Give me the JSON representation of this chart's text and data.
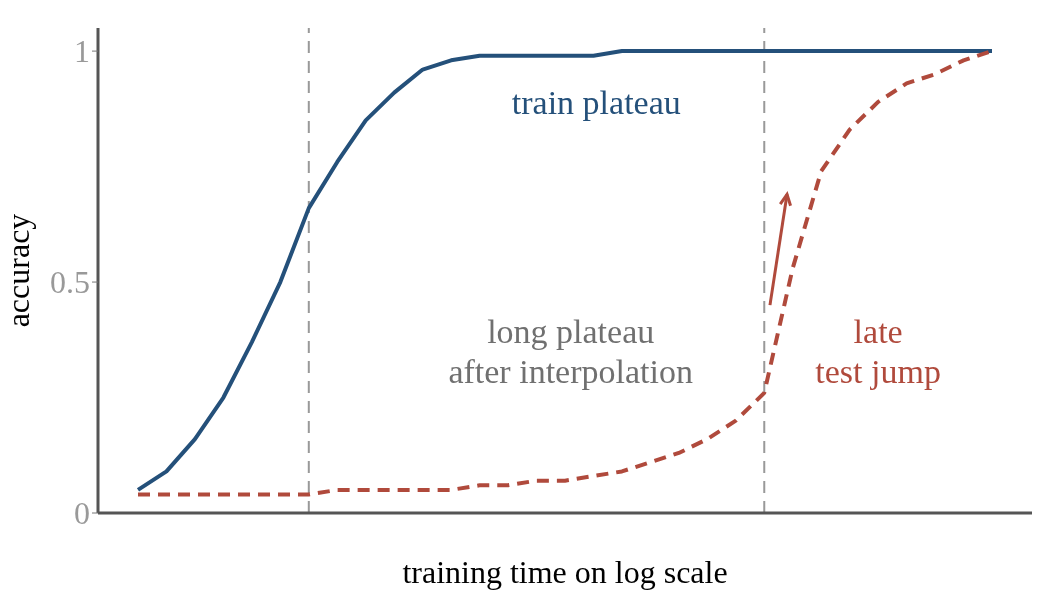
{
  "chart_data": {
    "type": "line",
    "xlabel": "training time on log scale",
    "ylabel": "accuracy",
    "categories": [
      null,
      null,
      null,
      null,
      null,
      null,
      null,
      null,
      null,
      null,
      null,
      null,
      null,
      null,
      null,
      null,
      null,
      null,
      null,
      null,
      null,
      null,
      null,
      null,
      null,
      null,
      null,
      null,
      null,
      null,
      null
    ],
    "ylim": [
      0,
      1.05
    ],
    "yticks": [
      0,
      {
        "value": 0.5,
        "label": "0.5"
      },
      1
    ],
    "tick_labels": "y",
    "grid": false,
    "legend": false,
    "marker": "none",
    "series": [
      {
        "color": "#24507a",
        "line_style": "solid",
        "values": [
          0.05,
          0.09,
          0.16,
          0.25,
          0.37,
          0.5,
          0.66,
          0.76,
          0.85,
          0.91,
          0.96,
          0.98,
          0.99,
          0.99,
          0.99,
          0.99,
          0.99,
          1.0,
          1.0,
          1.0,
          1.0,
          1.0,
          1.0,
          1.0,
          1.0,
          1.0,
          1.0,
          1.0,
          1.0,
          1.0,
          1.0
        ]
      },
      {
        "color": "#b04a3c",
        "line_style": "dashed",
        "values": [
          0.04,
          0.04,
          0.04,
          0.04,
          0.04,
          0.04,
          0.04,
          0.05,
          0.05,
          0.05,
          0.05,
          0.05,
          0.06,
          0.06,
          0.07,
          0.07,
          0.08,
          0.09,
          0.11,
          0.13,
          0.16,
          0.2,
          0.26,
          0.53,
          0.74,
          0.83,
          0.89,
          0.93,
          0.95,
          0.98,
          1.0
        ]
      }
    ],
    "annotations": [
      "train plateau",
      "long plateau\nafter interpolation",
      "late\ntest jump"
    ]
  }
}
